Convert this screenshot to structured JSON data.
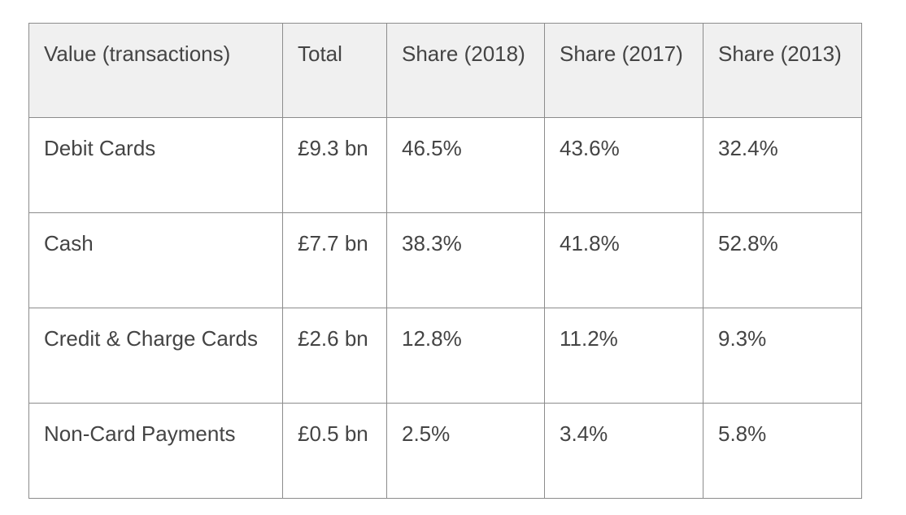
{
  "table": {
    "headers": [
      "Value (transactions)",
      "Total",
      "Share (2018)",
      "Share (2017)",
      "Share (2013)"
    ],
    "rows": [
      [
        "Debit Cards",
        "£9.3 bn",
        "46.5%",
        "43.6%",
        "32.4%"
      ],
      [
        "Cash",
        "£7.7 bn",
        "38.3%",
        "41.8%",
        "52.8%"
      ],
      [
        "Credit & Charge Cards",
        "£2.6 bn",
        "12.8%",
        "11.2%",
        "9.3%"
      ],
      [
        "Non-Card Payments",
        "£0.5 bn",
        "2.5%",
        "3.4%",
        "5.8%"
      ]
    ]
  },
  "colors": {
    "header_bg": "#f0f0f0",
    "border": "#8c8c8c",
    "text": "#444444"
  }
}
